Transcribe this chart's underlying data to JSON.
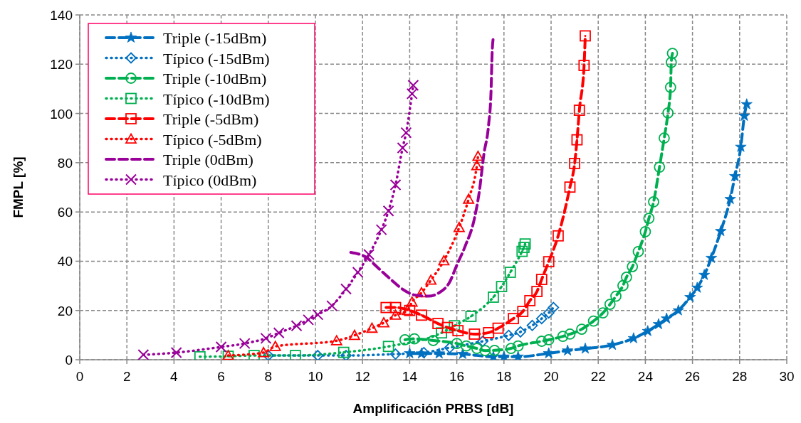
{
  "chart_data": {
    "type": "line",
    "xlabel": "Amplificación PRBS [dB]",
    "ylabel": "FMPL [%]",
    "xlim": [
      0,
      30
    ],
    "xticks": [
      0,
      2,
      4,
      6,
      8,
      10,
      12,
      14,
      16,
      18,
      20,
      22,
      24,
      26,
      28,
      30
    ],
    "ylim": [
      0,
      140
    ],
    "yticks": [
      0,
      20,
      40,
      60,
      80,
      100,
      120,
      140
    ],
    "grid": true,
    "legend": "top left",
    "series": [
      {
        "name": "Triple (-15dBm)",
        "color": "#0070c0",
        "line_style": "dashed",
        "marker": "star",
        "x": [
          14.0,
          14.5,
          15.25,
          16.25,
          17.55,
          18.0,
          18.6,
          19.9,
          20.7,
          21.45,
          22.6,
          23.5,
          24.1,
          24.56,
          24.9,
          25.4,
          25.9,
          26.2,
          26.5,
          26.8,
          27.2,
          27.6,
          27.8,
          28.05,
          28.2,
          28.3
        ],
        "values": [
          2.6,
          2.5,
          2.5,
          2.3,
          1.2,
          1.2,
          1.2,
          2.6,
          3.7,
          4.5,
          6,
          8.7,
          11.6,
          14.4,
          16.7,
          20,
          25.4,
          29.2,
          34.4,
          41.3,
          52.2,
          65.2,
          74.5,
          86.4,
          99,
          103.7
        ]
      },
      {
        "name": "Típico (-15dBm)",
        "color": "#0070c0",
        "line_style": "dotted",
        "marker": "diamond",
        "x": [
          8.0,
          10.1,
          11.3,
          13.4,
          14.6,
          15.7,
          17.1,
          18.2,
          18.7,
          19.2,
          19.6,
          19.9,
          20.1
        ],
        "values": [
          1.7,
          1.7,
          1.7,
          2.3,
          2.9,
          4.9,
          7.5,
          9.9,
          11.3,
          13.9,
          16.7,
          19,
          21.2
        ]
      },
      {
        "name": "Triple (-10dBm)",
        "color": "#00b050",
        "line_style": "dashed",
        "marker": "circle",
        "x": [
          13.8,
          14.2,
          15.0,
          16.0,
          16.4,
          16.85,
          17.2,
          17.6,
          18.3,
          18.6,
          19.6,
          19.9,
          20.5,
          20.8,
          21.3,
          21.8,
          22.2,
          22.5,
          22.75,
          23.05,
          23.2,
          23.45,
          23.7,
          24.0,
          24.15,
          24.35,
          24.6,
          24.8,
          24.96,
          25.07,
          25.1,
          25.15
        ],
        "values": [
          8.1,
          8.5,
          7.8,
          6.6,
          5.6,
          4.6,
          3.7,
          3.8,
          4.6,
          5.6,
          7.5,
          8.1,
          9.5,
          10.4,
          12.4,
          15.7,
          19,
          22.5,
          25.8,
          30.1,
          33.5,
          37.8,
          43.9,
          52,
          57.4,
          64.1,
          78.2,
          90,
          100.2,
          110.6,
          120.7,
          124.4
        ]
      },
      {
        "name": "Típico (-10dBm)",
        "color": "#00b050",
        "line_style": "dotted",
        "marker": "square",
        "x": [
          5.1,
          6.3,
          7.4,
          9.15,
          11.2,
          13.1,
          15.35,
          15.9,
          16.6,
          17.55,
          17.9,
          18.27,
          18.77,
          18.85,
          18.9
        ],
        "values": [
          1.2,
          1.4,
          1.7,
          1.7,
          3,
          5.4,
          10.9,
          13.8,
          17.6,
          25.4,
          29.7,
          35.5,
          44,
          45.6,
          47
        ]
      },
      {
        "name": "Triple (-5dBm)",
        "color": "#ff0000",
        "line_style": "dashed",
        "marker": "square",
        "x": [
          13.0,
          13.4,
          14.0,
          14.5,
          15.2,
          15.6,
          16.05,
          16.75,
          17.35,
          17.75,
          18.4,
          18.8,
          19.1,
          19.4,
          19.6,
          19.9,
          20.3,
          20.8,
          21.0,
          21.1,
          21.2,
          21.4,
          21.45
        ],
        "values": [
          21.2,
          21.2,
          20,
          18.1,
          14.7,
          13.1,
          11.8,
          10.4,
          11,
          12.8,
          16.7,
          19.6,
          24,
          27.7,
          32.6,
          39.8,
          50.3,
          70.1,
          79.7,
          89.3,
          101.3,
          119.5,
          131.5
        ]
      },
      {
        "name": "Típico (-5dBm)",
        "color": "#ff0000",
        "line_style": "dotted",
        "marker": "triangle",
        "x": [
          6.3,
          7.8,
          8.3,
          10.9,
          11.66,
          12.4,
          12.9,
          13.4,
          13.9,
          14.1,
          14.5,
          14.9,
          15.45,
          16.1,
          16.5,
          16.85,
          16.9
        ],
        "values": [
          1.7,
          2.9,
          5.4,
          7.7,
          9.9,
          12.8,
          15,
          18.1,
          20,
          23.4,
          27.2,
          32.3,
          40.2,
          53.7,
          65.2,
          78.8,
          82.6
        ]
      },
      {
        "name": "Triple (0dBm)",
        "color": "#990099",
        "line_style": "dashed",
        "marker": "none",
        "x": [
          11.5,
          12.2,
          12.6,
          13.2,
          13.8,
          14.2,
          14.8,
          15.25,
          15.7,
          16.0,
          16.35,
          16.75,
          16.95,
          17.15,
          17.35,
          17.45,
          17.5,
          17.55
        ],
        "values": [
          43.6,
          41.3,
          37.8,
          32.6,
          28,
          26.3,
          25.8,
          27.2,
          31.6,
          38.4,
          46,
          57.5,
          68,
          83.5,
          95.5,
          108.5,
          125,
          130.8
        ]
      },
      {
        "name": "Típico (0dBm)",
        "color": "#990099",
        "line_style": "dotted",
        "marker": "cross",
        "x": [
          2.7,
          4.1,
          6.0,
          7.0,
          7.9,
          8.45,
          9.2,
          9.7,
          10.1,
          10.7,
          11.3,
          11.8,
          12.27,
          12.8,
          13.1,
          13.4,
          13.7,
          13.85,
          14.1,
          14.15
        ],
        "values": [
          2,
          2.9,
          5.2,
          6.6,
          8.7,
          10.9,
          13.8,
          16.2,
          18.3,
          21.9,
          28.7,
          35.5,
          42.7,
          52.8,
          60.4,
          71,
          86,
          92.2,
          108,
          111.4
        ]
      }
    ]
  }
}
